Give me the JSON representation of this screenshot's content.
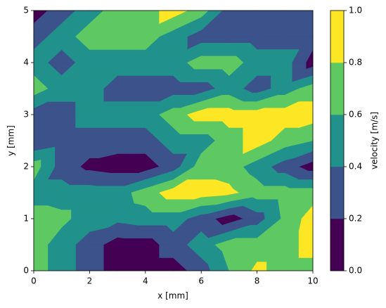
{
  "chart_data": {
    "type": "contourf",
    "x": [
      0,
      1,
      2,
      3,
      4,
      5,
      6,
      7,
      8,
      9,
      10
    ],
    "y": [
      0,
      0.5,
      1,
      1.5,
      2,
      2.5,
      3,
      3.5,
      4,
      4.5,
      5
    ],
    "z": [
      [
        0.7,
        0.5,
        0.3,
        0.1,
        0.1,
        0.1,
        0.3,
        0.6,
        0.85,
        0.7,
        0.7
      ],
      [
        0.7,
        0.5,
        0.3,
        0.1,
        0.1,
        0.3,
        0.5,
        0.7,
        0.7,
        0.7,
        0.9
      ],
      [
        0.7,
        0.65,
        0.5,
        0.45,
        0.5,
        0.5,
        0.3,
        0.1,
        0.3,
        0.65,
        0.9
      ],
      [
        0.5,
        0.5,
        0.5,
        0.5,
        0.7,
        0.9,
        0.9,
        0.85,
        0.7,
        0.7,
        0.7
      ],
      [
        0.7,
        0.3,
        0.15,
        0.1,
        0.1,
        0.3,
        0.7,
        0.7,
        0.5,
        0.3,
        0.1
      ],
      [
        0.2,
        0.3,
        0.3,
        0.3,
        0.3,
        0.5,
        0.5,
        0.7,
        0.9,
        0.7,
        0.6
      ],
      [
        0.3,
        0.3,
        0.5,
        0.5,
        0.5,
        0.7,
        0.9,
        0.9,
        0.9,
        0.9,
        0.9
      ],
      [
        0.7,
        0.5,
        0.5,
        0.3,
        0.3,
        0.3,
        0.3,
        0.5,
        0.3,
        0.5,
        0.7
      ],
      [
        0.5,
        0.3,
        0.5,
        0.5,
        0.5,
        0.5,
        0.7,
        0.7,
        0.5,
        0.5,
        0.1
      ],
      [
        0.3,
        0.5,
        0.7,
        0.7,
        0.7,
        0.5,
        0.3,
        0.3,
        0.3,
        0.3,
        0.3
      ],
      [
        0.1,
        0.3,
        0.5,
        0.7,
        0.7,
        0.9,
        0.7,
        0.3,
        0.3,
        0.3,
        0.3
      ]
    ],
    "levels": [
      0,
      0.2,
      0.4,
      0.6,
      0.8,
      1
    ],
    "colors": [
      "#440154",
      "#3b528b",
      "#21918c",
      "#5ec962",
      "#fde725"
    ],
    "xlim": [
      0,
      10
    ],
    "ylim": [
      0,
      5
    ],
    "xticks": [
      0,
      2,
      4,
      6,
      8,
      10
    ],
    "yticks": [
      0,
      1,
      2,
      3,
      4,
      5
    ],
    "xlabel": "x [mm]",
    "ylabel": "y [mm]",
    "colorbar_label": "velocity [m/s]",
    "colorbar_ticks": [
      {
        "value": 0,
        "label": "0.0"
      },
      {
        "value": 0.2,
        "label": "0.2"
      },
      {
        "value": 0.4,
        "label": "0.4"
      },
      {
        "value": 0.6,
        "label": "0.6"
      },
      {
        "value": 0.8,
        "label": "0.8"
      },
      {
        "value": 1,
        "label": "1.0"
      }
    ]
  }
}
